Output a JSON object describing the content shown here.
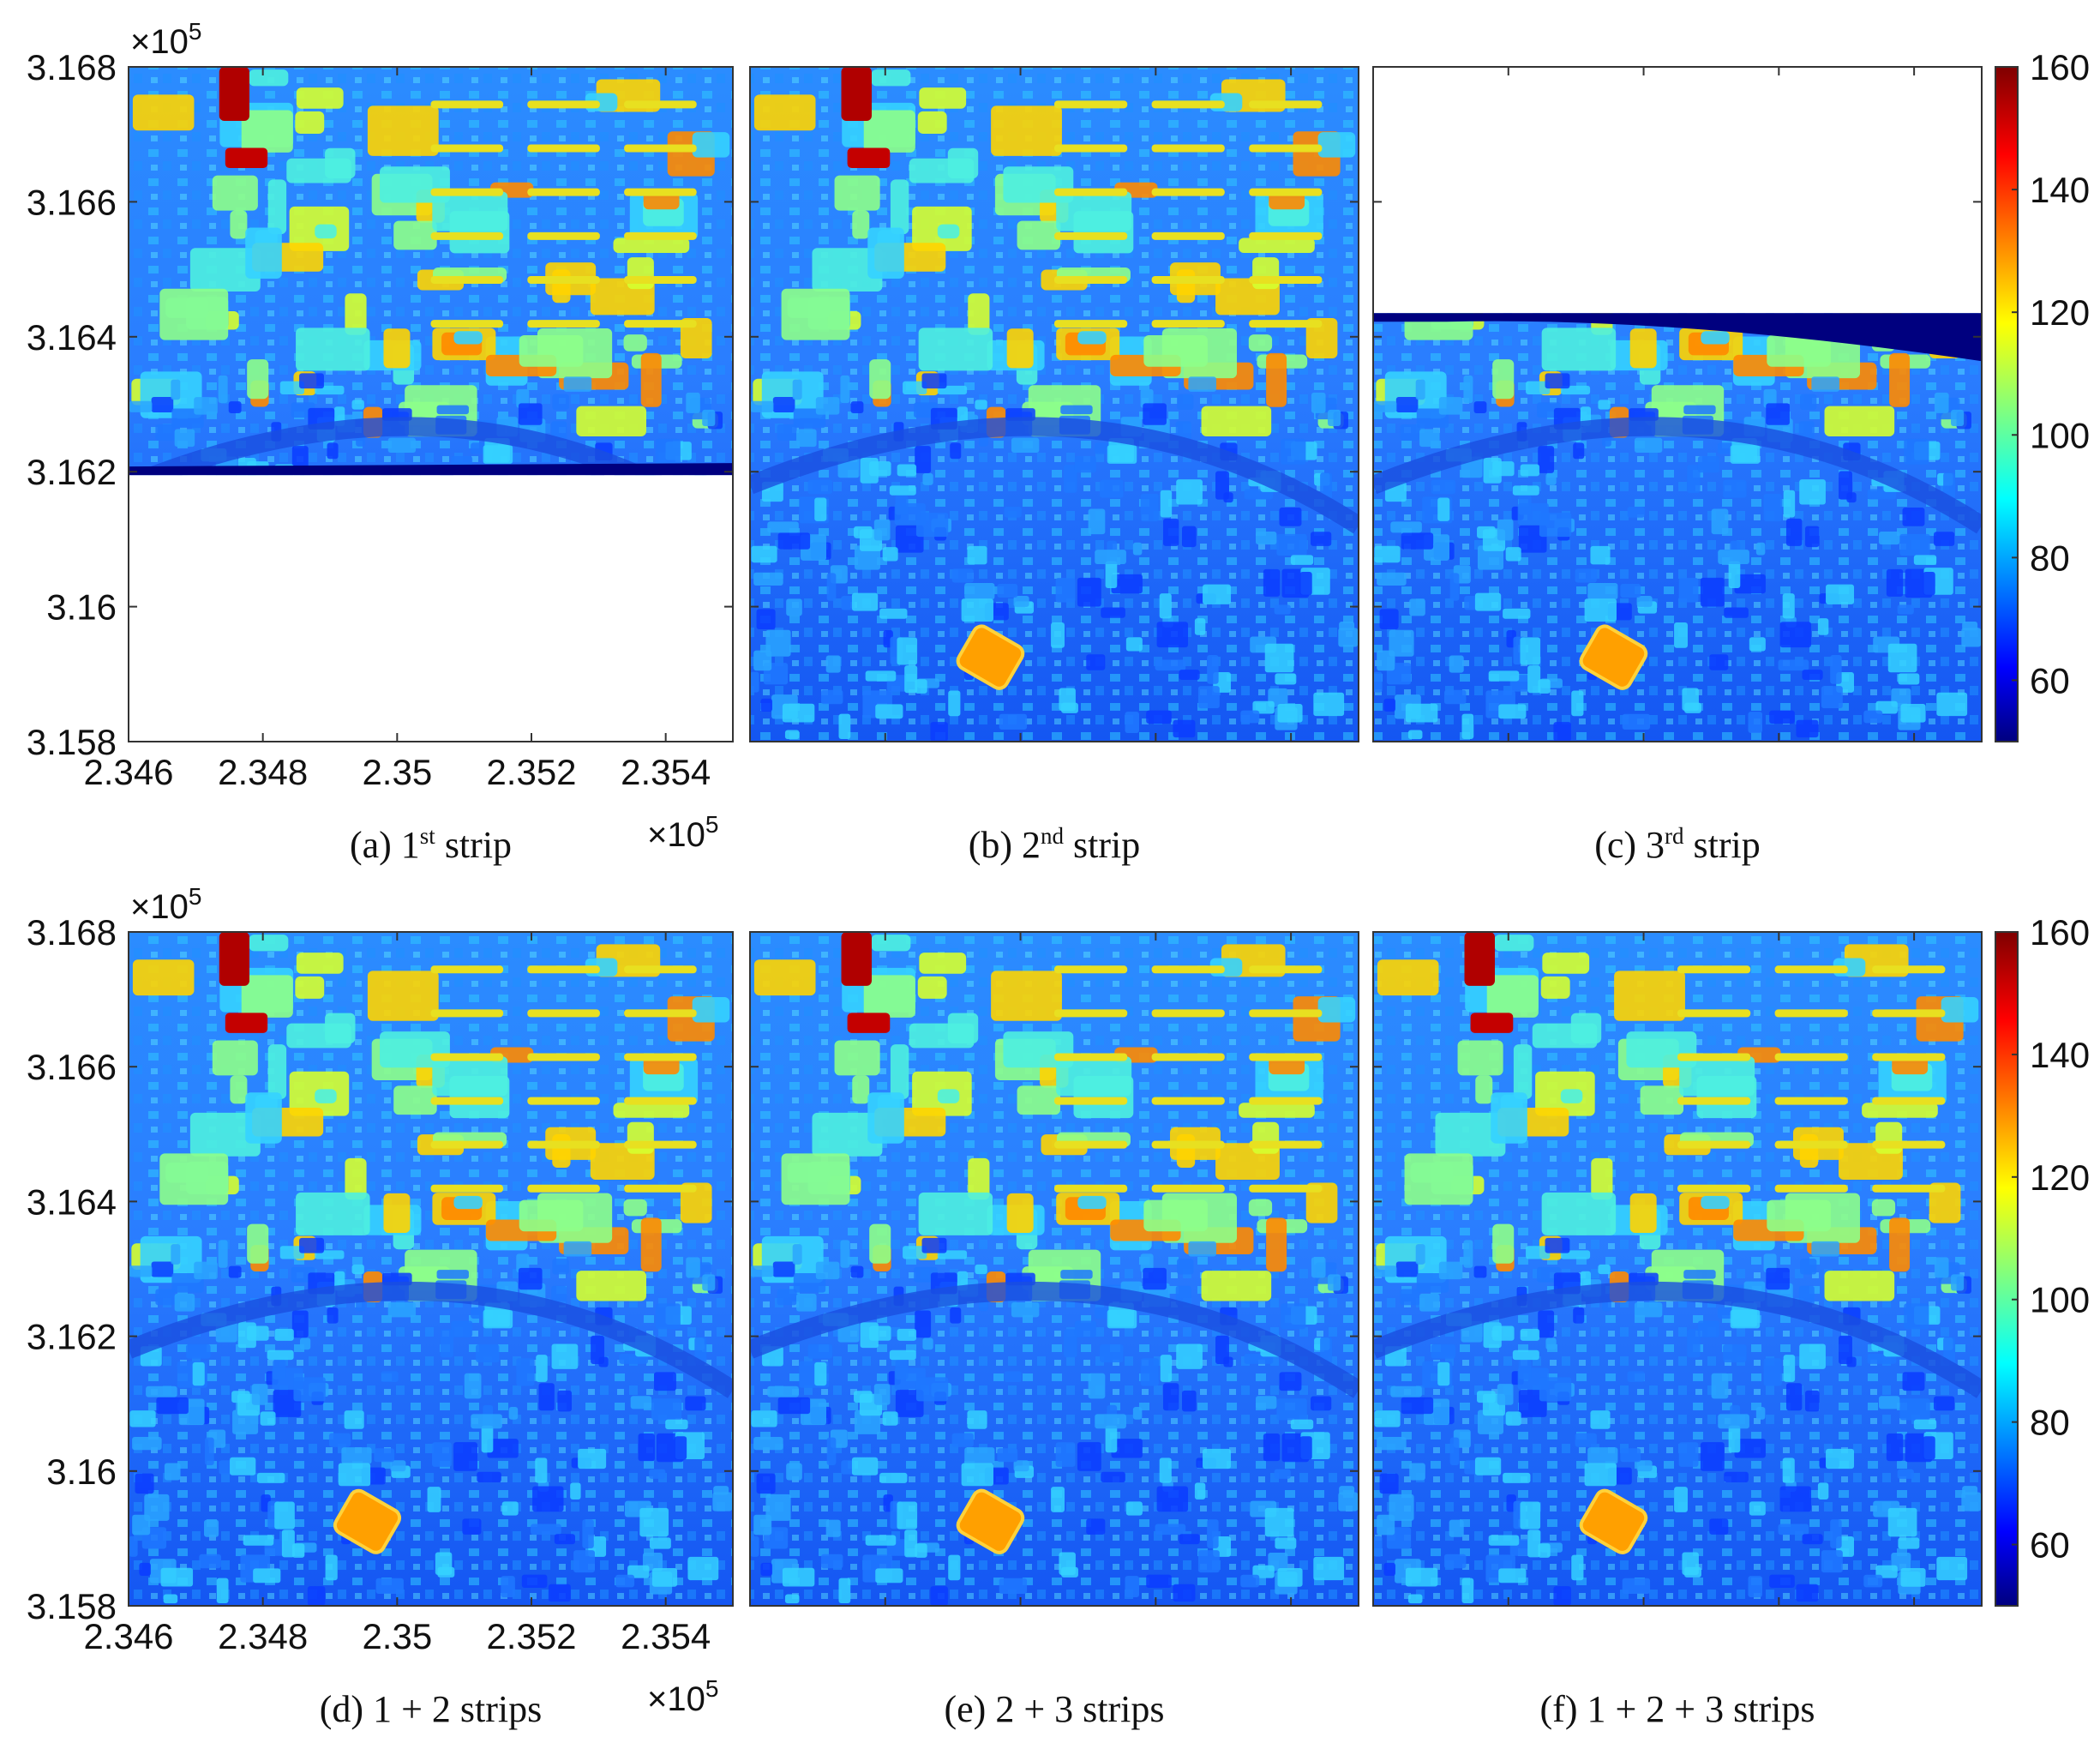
{
  "chart_data": {
    "type": "heatmap",
    "colormap": "jet",
    "colorbar": {
      "range": [
        50,
        160
      ],
      "ticks": [
        "160",
        "140",
        "120",
        "100",
        "80",
        "60"
      ],
      "tick_values": [
        160,
        140,
        120,
        100,
        80,
        60
      ]
    },
    "x_axis": {
      "range": [
        234600,
        235500
      ],
      "tick_values": [
        234600,
        234800,
        235000,
        235200,
        235400
      ],
      "tick_labels": [
        "2.346",
        "2.348",
        "2.35",
        "2.352",
        "2.354"
      ],
      "exponent_label": "×10",
      "exponent": "5"
    },
    "y_axis": {
      "range": [
        315800,
        316800
      ],
      "tick_values": [
        316800,
        316600,
        316400,
        316200,
        316000,
        315800
      ],
      "tick_labels": [
        "3.168",
        "3.166",
        "3.164",
        "3.162",
        "3.16",
        "3.158"
      ],
      "exponent_label": "×10",
      "exponent": "5"
    },
    "panels": [
      {
        "letter": "(a) 1",
        "sup": "st",
        "rest": " strip",
        "coverage_y_min": 316195,
        "coverage_y_max": 316800
      },
      {
        "letter": "(b) 2",
        "sup": "nd",
        "rest": " strip",
        "coverage_y_min": 315800,
        "coverage_y_max": 316800
      },
      {
        "letter": "(c) 3",
        "sup": "rd",
        "rest": " strip",
        "coverage_y_min": 315800,
        "coverage_y_max": 316435
      },
      {
        "letter": "(d) 1 + 2 strips",
        "sup": "",
        "rest": "",
        "coverage_y_min": 315800,
        "coverage_y_max": 316800
      },
      {
        "letter": "(e) 2 + 3 strips",
        "sup": "",
        "rest": "",
        "coverage_y_min": 315800,
        "coverage_y_max": 316800
      },
      {
        "letter": "(f) 1 + 2 + 3 strips",
        "sup": "",
        "rest": "",
        "coverage_y_min": 315800,
        "coverage_y_max": 316800
      }
    ]
  }
}
